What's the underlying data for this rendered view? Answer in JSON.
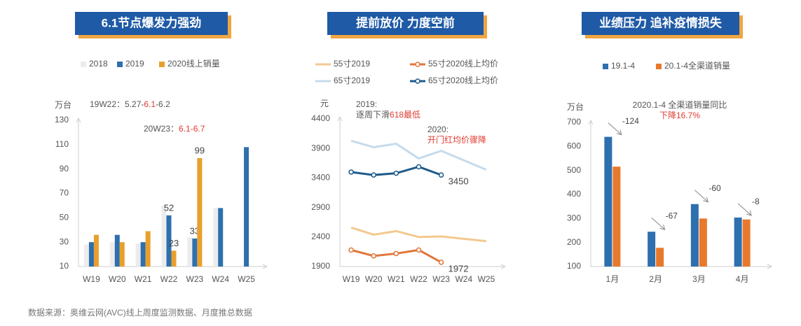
{
  "chart_data": [
    {
      "type": "bar",
      "title": "6.1节点爆发力强劲",
      "y_unit": "万台",
      "categories": [
        "W19",
        "W20",
        "W21",
        "W22",
        "W23",
        "W24",
        "W25"
      ],
      "series": [
        {
          "name": "2018",
          "color": "#ececec",
          "values": [
            28,
            30,
            29,
            60,
            34,
            58,
            null
          ]
        },
        {
          "name": "2019",
          "color": "#2e6fae",
          "values": [
            30,
            36,
            30,
            52,
            33,
            58,
            108
          ],
          "value_labels": [
            null,
            null,
            null,
            "52",
            "33",
            null,
            null
          ]
        },
        {
          "name": "2020线上销量",
          "color": "#e8a02c",
          "values": [
            36,
            30,
            39,
            23,
            99,
            null,
            null
          ],
          "value_labels": [
            null,
            null,
            null,
            "23",
            "99",
            null,
            null
          ]
        }
      ],
      "ylim": [
        10,
        130
      ],
      "yticks": [
        10,
        30,
        50,
        70,
        90,
        110,
        130
      ],
      "annotations": [
        {
          "lines": [
            [
              {
                "text": "19W22：5.27-"
              },
              {
                "text": "6.1",
                "color": "#e03c31"
              },
              {
                "text": "-6.2"
              }
            ]
          ]
        },
        {
          "lines": [
            [
              {
                "text": "20W23："
              },
              {
                "text": "6.1-6.7",
                "color": "#e03c31"
              }
            ]
          ]
        }
      ]
    },
    {
      "type": "line",
      "title": "提前放价 力度空前",
      "y_unit": "元",
      "categories": [
        "W19",
        "W20",
        "W21",
        "W22",
        "W23",
        "W24",
        "W25"
      ],
      "series": [
        {
          "name": "55寸2019",
          "color": "#f3c98f",
          "markers": false,
          "values": [
            2560,
            2440,
            2500,
            2400,
            2410,
            2370,
            2330
          ]
        },
        {
          "name": "65寸2019",
          "color": "#c5dbec",
          "markers": false,
          "values": [
            4030,
            3920,
            3980,
            3730,
            3860,
            3700,
            3540
          ]
        },
        {
          "name": "55寸2020线上均价",
          "color": "#e0763a",
          "markers": true,
          "values": [
            2180,
            2080,
            2120,
            2180,
            1972,
            null,
            null
          ],
          "value_labels": [
            null,
            null,
            null,
            null,
            "1972",
            null,
            null
          ]
        },
        {
          "name": "65寸2020线上均价",
          "color": "#1e5b8c",
          "markers": true,
          "values": [
            3500,
            3450,
            3480,
            3590,
            3450,
            null,
            null
          ],
          "value_labels": [
            null,
            null,
            null,
            null,
            "3450",
            null,
            null
          ]
        }
      ],
      "ylim": [
        1900,
        4400
      ],
      "yticks": [
        1900,
        2400,
        2900,
        3400,
        3900,
        4400
      ],
      "annotations": [
        {
          "lines": [
            [
              {
                "text": "2019:"
              }
            ],
            [
              {
                "text": "逐周下滑"
              },
              {
                "text": "618最低",
                "color": "#e03c31"
              }
            ]
          ]
        },
        {
          "lines": [
            [
              {
                "text": "2020:"
              }
            ],
            [
              {
                "text": "开门红均价骤降",
                "color": "#e03c31"
              }
            ]
          ]
        }
      ]
    },
    {
      "type": "bar",
      "title": "业绩压力 追补疫情损失",
      "y_unit": "万台",
      "categories": [
        "1月",
        "2月",
        "3月",
        "4月"
      ],
      "series": [
        {
          "name": "19.1-4",
          "color": "#2e6fae",
          "values": [
            640,
            245,
            360,
            304
          ]
        },
        {
          "name": "20.1-4全渠道销量",
          "color": "#e8792c",
          "values": [
            516,
            178,
            300,
            296
          ]
        }
      ],
      "diffs": [
        -124,
        -67,
        -60,
        -8
      ],
      "ylim": [
        100,
        700
      ],
      "yticks": [
        100,
        200,
        300,
        400,
        500,
        600,
        700
      ],
      "annotations": [
        {
          "lines": [
            [
              {
                "text": "2020.1-4 全渠道销量同比"
              }
            ],
            [
              {
                "text": "下降16.7%",
                "color": "#e03c31"
              }
            ]
          ]
        }
      ]
    }
  ],
  "source": "数据来源：奥维云网(AVC)线上周度监测数据、月度推总数据"
}
